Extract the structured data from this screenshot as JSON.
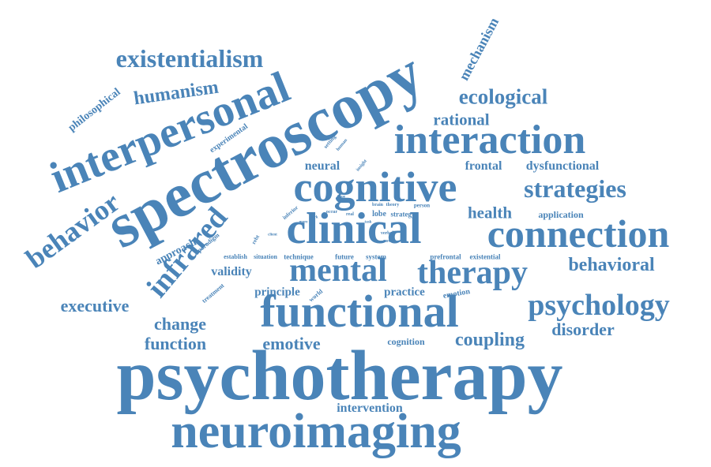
{
  "accent_color": "#4a84b8",
  "background_color": "#ffffff",
  "words": {
    "psychotherapy": "psychotherapy",
    "neuroimaging": "neuroimaging",
    "spectroscopy": "spectroscopy",
    "interpersonal": "interpersonal",
    "functional": "functional",
    "clinical": "clinical",
    "connection": "connection",
    "cognitive": "cognitive",
    "interaction": "interaction",
    "mental": "mental",
    "therapy": "therapy",
    "psychology": "psychology",
    "existentialism": "existentialism",
    "infrared": "infrared",
    "behavior": "behavior",
    "strategies": "strategies",
    "ecological": "ecological",
    "behavioral": "behavioral",
    "humanism": "humanism",
    "executive": "executive",
    "change": "change",
    "function": "function",
    "emotive": "emotive",
    "coupling": "coupling",
    "disorder": "disorder",
    "rational": "rational",
    "health": "health",
    "mechanism": "mechanism",
    "philosophical": "philosophical",
    "neural": "neural",
    "frontal": "frontal",
    "dysfunctional": "dysfunctional",
    "validity": "validity",
    "intervention": "intervention",
    "principle": "principle",
    "practice": "practice",
    "approach": "approach",
    "application": "application",
    "cognition": "cognition",
    "emotion": "emotion",
    "experimental": "experimental",
    "technique": "technique",
    "future": "future",
    "system": "system",
    "situation": "situation",
    "establish": "establish",
    "prefrontal": "prefrontal",
    "existential": "existential",
    "paradigm": "paradigm",
    "treatment": "treatment",
    "world": "world",
    "lobe": "lobe",
    "strategy": "strategy",
    "brain": "brain",
    "theory": "theory",
    "person": "person",
    "inferior": "inferior",
    "rebt": "rebt",
    "setting": "setting",
    "human": "human",
    "insight": "insight",
    "occur": "occur",
    "real": "real",
    "verbal": "verbal",
    "novel": "novel",
    "client": "client",
    "work": "work",
    "issue": "issue",
    "more": "more",
    "task": "task"
  }
}
